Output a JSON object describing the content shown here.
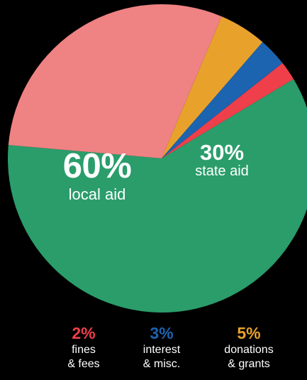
{
  "chart_data": {
    "type": "pie",
    "slices": [
      {
        "id": "local",
        "value": 60,
        "pct_label": "60%",
        "name_line1": "local aid",
        "name_line2": "",
        "color": "#2a9d6b"
      },
      {
        "id": "state",
        "value": 30,
        "pct_label": "30%",
        "name_line1": "state aid",
        "name_line2": "",
        "color": "#ef8283"
      },
      {
        "id": "donations",
        "value": 5,
        "pct_label": "5%",
        "name_line1": "donations",
        "name_line2": "& grants",
        "color": "#e8a22c"
      },
      {
        "id": "interest",
        "value": 3,
        "pct_label": "3%",
        "name_line1": "interest",
        "name_line2": "& misc.",
        "color": "#1c63b0"
      },
      {
        "id": "fines",
        "value": 2,
        "pct_label": "2%",
        "name_line1": "fines",
        "name_line2": "& fees",
        "color": "#ef3f4a"
      }
    ],
    "background": "#000000"
  }
}
